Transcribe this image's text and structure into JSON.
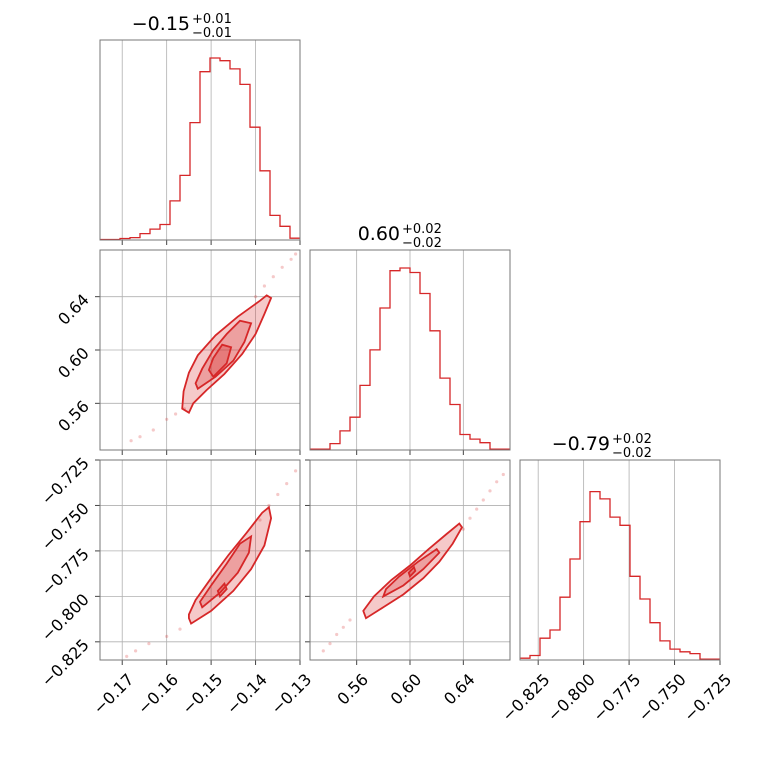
{
  "chart_data": {
    "type": "corner",
    "color": "#d62728",
    "params": [
      {
        "title_main": "−0.15",
        "title_sup": "+0.01",
        "title_sub": "−0.01",
        "range": [
          -0.175,
          -0.13
        ],
        "ticks": [
          -0.17,
          -0.16,
          -0.15,
          -0.14,
          -0.13
        ],
        "tick_labels": [
          "−0.17",
          "−0.16",
          "−0.15",
          "−0.14",
          "−0.13"
        ],
        "hist": [
          0.003,
          0.003,
          0.008,
          0.013,
          0.035,
          0.06,
          0.085,
          0.215,
          0.355,
          0.645,
          0.925,
          1.0,
          0.985,
          0.94,
          0.855,
          0.62,
          0.38,
          0.135,
          0.075,
          0.01
        ]
      },
      {
        "title_main": "0.60",
        "title_sup": "+0.02",
        "title_sub": "−0.02",
        "range": [
          0.525,
          0.675
        ],
        "ticks": [
          0.56,
          0.6,
          0.64
        ],
        "tick_labels": [
          "0.56",
          "0.60",
          "0.64"
        ],
        "hist": [
          0.005,
          0.005,
          0.035,
          0.105,
          0.18,
          0.355,
          0.55,
          0.78,
          0.985,
          1.0,
          0.975,
          0.86,
          0.655,
          0.395,
          0.25,
          0.085,
          0.06,
          0.04,
          0.005,
          0.005
        ]
      },
      {
        "title_main": "−0.79",
        "title_sup": "+0.02",
        "title_sub": "−0.02",
        "range": [
          -0.835,
          -0.725
        ],
        "ticks": [
          -0.825,
          -0.8,
          -0.775,
          -0.75,
          -0.725
        ],
        "tick_labels": [
          "−0.825",
          "−0.800",
          "−0.775",
          "−0.750",
          "−0.725"
        ],
        "hist": [
          0.01,
          0.025,
          0.12,
          0.165,
          0.345,
          0.555,
          0.76,
          0.925,
          0.885,
          0.785,
          0.74,
          0.46,
          0.335,
          0.205,
          0.105,
          0.06,
          0.045,
          0.035,
          0.005,
          0.005
        ]
      }
    ],
    "contours": {
      "1_0": {
        "points": [
          [
            -0.168,
            0.532
          ],
          [
            -0.166,
            0.535
          ],
          [
            -0.163,
            0.54
          ],
          [
            -0.16,
            0.548
          ],
          [
            -0.158,
            0.552
          ],
          [
            -0.156,
            0.556
          ],
          [
            -0.14,
            0.64
          ],
          [
            -0.138,
            0.648
          ],
          [
            -0.136,
            0.655
          ],
          [
            -0.134,
            0.662
          ],
          [
            -0.132,
            0.668
          ],
          [
            -0.131,
            0.672
          ]
        ],
        "outer": [
          [
            -0.155,
            0.553
          ],
          [
            -0.154,
            0.56
          ],
          [
            -0.151,
            0.57
          ],
          [
            -0.147,
            0.582
          ],
          [
            -0.143,
            0.597
          ],
          [
            -0.14,
            0.612
          ],
          [
            -0.138,
            0.627
          ],
          [
            -0.1365,
            0.639
          ],
          [
            -0.1375,
            0.641
          ],
          [
            -0.139,
            0.637
          ],
          [
            -0.144,
            0.625
          ],
          [
            -0.149,
            0.611
          ],
          [
            -0.153,
            0.596
          ],
          [
            -0.155,
            0.583
          ],
          [
            -0.1562,
            0.569
          ],
          [
            -0.1565,
            0.556
          ]
        ],
        "mid": [
          [
            -0.153,
            0.571
          ],
          [
            -0.149,
            0.58
          ],
          [
            -0.145,
            0.592
          ],
          [
            -0.1425,
            0.606
          ],
          [
            -0.141,
            0.62
          ],
          [
            -0.1435,
            0.622
          ],
          [
            -0.1465,
            0.612
          ],
          [
            -0.1495,
            0.6
          ],
          [
            -0.152,
            0.586
          ],
          [
            -0.1535,
            0.575
          ]
        ],
        "inner": [
          [
            -0.1495,
            0.58
          ],
          [
            -0.1465,
            0.59
          ],
          [
            -0.1455,
            0.602
          ],
          [
            -0.1475,
            0.604
          ],
          [
            -0.1495,
            0.594
          ],
          [
            -0.1505,
            0.585
          ]
        ]
      },
      "2_0": {
        "points": [
          [
            -0.169,
            -0.833
          ],
          [
            -0.167,
            -0.83
          ],
          [
            -0.164,
            -0.826
          ],
          [
            -0.16,
            -0.822
          ],
          [
            -0.157,
            -0.818
          ],
          [
            -0.139,
            -0.758
          ],
          [
            -0.137,
            -0.75
          ],
          [
            -0.135,
            -0.744
          ],
          [
            -0.133,
            -0.738
          ],
          [
            -0.131,
            -0.731
          ]
        ],
        "outer": [
          [
            -0.155,
            -0.812
          ],
          [
            -0.1545,
            -0.815
          ],
          [
            -0.15,
            -0.808
          ],
          [
            -0.145,
            -0.797
          ],
          [
            -0.141,
            -0.785
          ],
          [
            -0.138,
            -0.772
          ],
          [
            -0.1365,
            -0.757
          ],
          [
            -0.137,
            -0.751
          ],
          [
            -0.1385,
            -0.754
          ],
          [
            -0.142,
            -0.765
          ],
          [
            -0.146,
            -0.777
          ],
          [
            -0.15,
            -0.79
          ],
          [
            -0.1535,
            -0.802
          ],
          [
            -0.155,
            -0.81
          ]
        ],
        "mid": [
          [
            -0.152,
            -0.806
          ],
          [
            -0.148,
            -0.798
          ],
          [
            -0.144,
            -0.787
          ],
          [
            -0.1415,
            -0.776
          ],
          [
            -0.141,
            -0.767
          ],
          [
            -0.1435,
            -0.771
          ],
          [
            -0.1465,
            -0.782
          ],
          [
            -0.15,
            -0.794
          ],
          [
            -0.1525,
            -0.803
          ]
        ],
        "inner": [
          [
            -0.148,
            -0.8
          ],
          [
            -0.1465,
            -0.796
          ],
          [
            -0.147,
            -0.793
          ],
          [
            -0.1485,
            -0.797
          ]
        ]
      },
      "2_1": {
        "points": [
          [
            0.535,
            -0.83
          ],
          [
            0.54,
            -0.826
          ],
          [
            0.545,
            -0.821
          ],
          [
            0.55,
            -0.817
          ],
          [
            0.555,
            -0.813
          ],
          [
            0.64,
            -0.763
          ],
          [
            0.645,
            -0.757
          ],
          [
            0.65,
            -0.752
          ],
          [
            0.655,
            -0.747
          ],
          [
            0.66,
            -0.742
          ],
          [
            0.665,
            -0.737
          ],
          [
            0.67,
            -0.733
          ]
        ],
        "outer": [
          [
            0.565,
            -0.808
          ],
          [
            0.567,
            -0.812
          ],
          [
            0.58,
            -0.806
          ],
          [
            0.595,
            -0.799
          ],
          [
            0.61,
            -0.79
          ],
          [
            0.622,
            -0.781
          ],
          [
            0.632,
            -0.771
          ],
          [
            0.639,
            -0.762
          ],
          [
            0.637,
            -0.76
          ],
          [
            0.627,
            -0.766
          ],
          [
            0.614,
            -0.774
          ],
          [
            0.6,
            -0.783
          ],
          [
            0.586,
            -0.791
          ],
          [
            0.573,
            -0.8
          ]
        ],
        "mid": [
          [
            0.58,
            -0.8
          ],
          [
            0.595,
            -0.794
          ],
          [
            0.61,
            -0.785
          ],
          [
            0.622,
            -0.776
          ],
          [
            0.62,
            -0.774
          ],
          [
            0.606,
            -0.781
          ],
          [
            0.592,
            -0.789
          ],
          [
            0.582,
            -0.796
          ]
        ],
        "inner": [
          [
            0.6,
            -0.789
          ],
          [
            0.604,
            -0.786
          ],
          [
            0.603,
            -0.784
          ],
          [
            0.599,
            -0.787
          ]
        ]
      }
    }
  }
}
